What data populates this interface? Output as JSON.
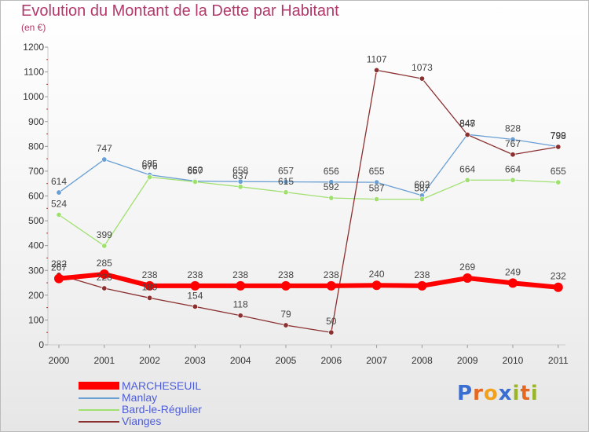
{
  "header": {
    "title": "Evolution du Montant de la Dette par Habitant",
    "subtitle": "(en €)"
  },
  "logo": {
    "text": "Proxiti"
  },
  "chart_data": {
    "type": "line",
    "title": "Evolution du Montant de la Dette par Habitant",
    "subtitle": "(en €)",
    "xlabel": "",
    "ylabel": "",
    "categories": [
      "2000",
      "2001",
      "2002",
      "2003",
      "2004",
      "2005",
      "2006",
      "2007",
      "2008",
      "2009",
      "2010",
      "2011"
    ],
    "ylim": [
      0,
      1200
    ],
    "yticks": [
      0,
      100,
      200,
      300,
      400,
      500,
      600,
      700,
      800,
      900,
      1000,
      1100,
      1200
    ],
    "grid": false,
    "legend": "bottom-left",
    "series": [
      {
        "name": "MARCHESEUIL",
        "color": "#ff0000",
        "width": 6,
        "values": [
          267,
          285,
          238,
          238,
          238,
          238,
          238,
          240,
          238,
          269,
          249,
          232
        ]
      },
      {
        "name": "Manlay",
        "color": "#6a9fd4",
        "width": 1.3,
        "values": [
          614,
          747,
          685,
          660,
          658,
          657,
          656,
          655,
          602,
          848,
          828,
          799
        ]
      },
      {
        "name": "Bard-le-Régulier",
        "color": "#a0e070",
        "width": 1.3,
        "values": [
          524,
          399,
          676,
          657,
          637,
          615,
          592,
          587,
          587,
          664,
          664,
          655
        ]
      },
      {
        "name": "Vianges",
        "color": "#8b3030",
        "width": 1.3,
        "values": [
          282,
          228,
          189,
          154,
          118,
          79,
          50,
          1107,
          1073,
          847,
          767,
          798
        ]
      }
    ]
  }
}
